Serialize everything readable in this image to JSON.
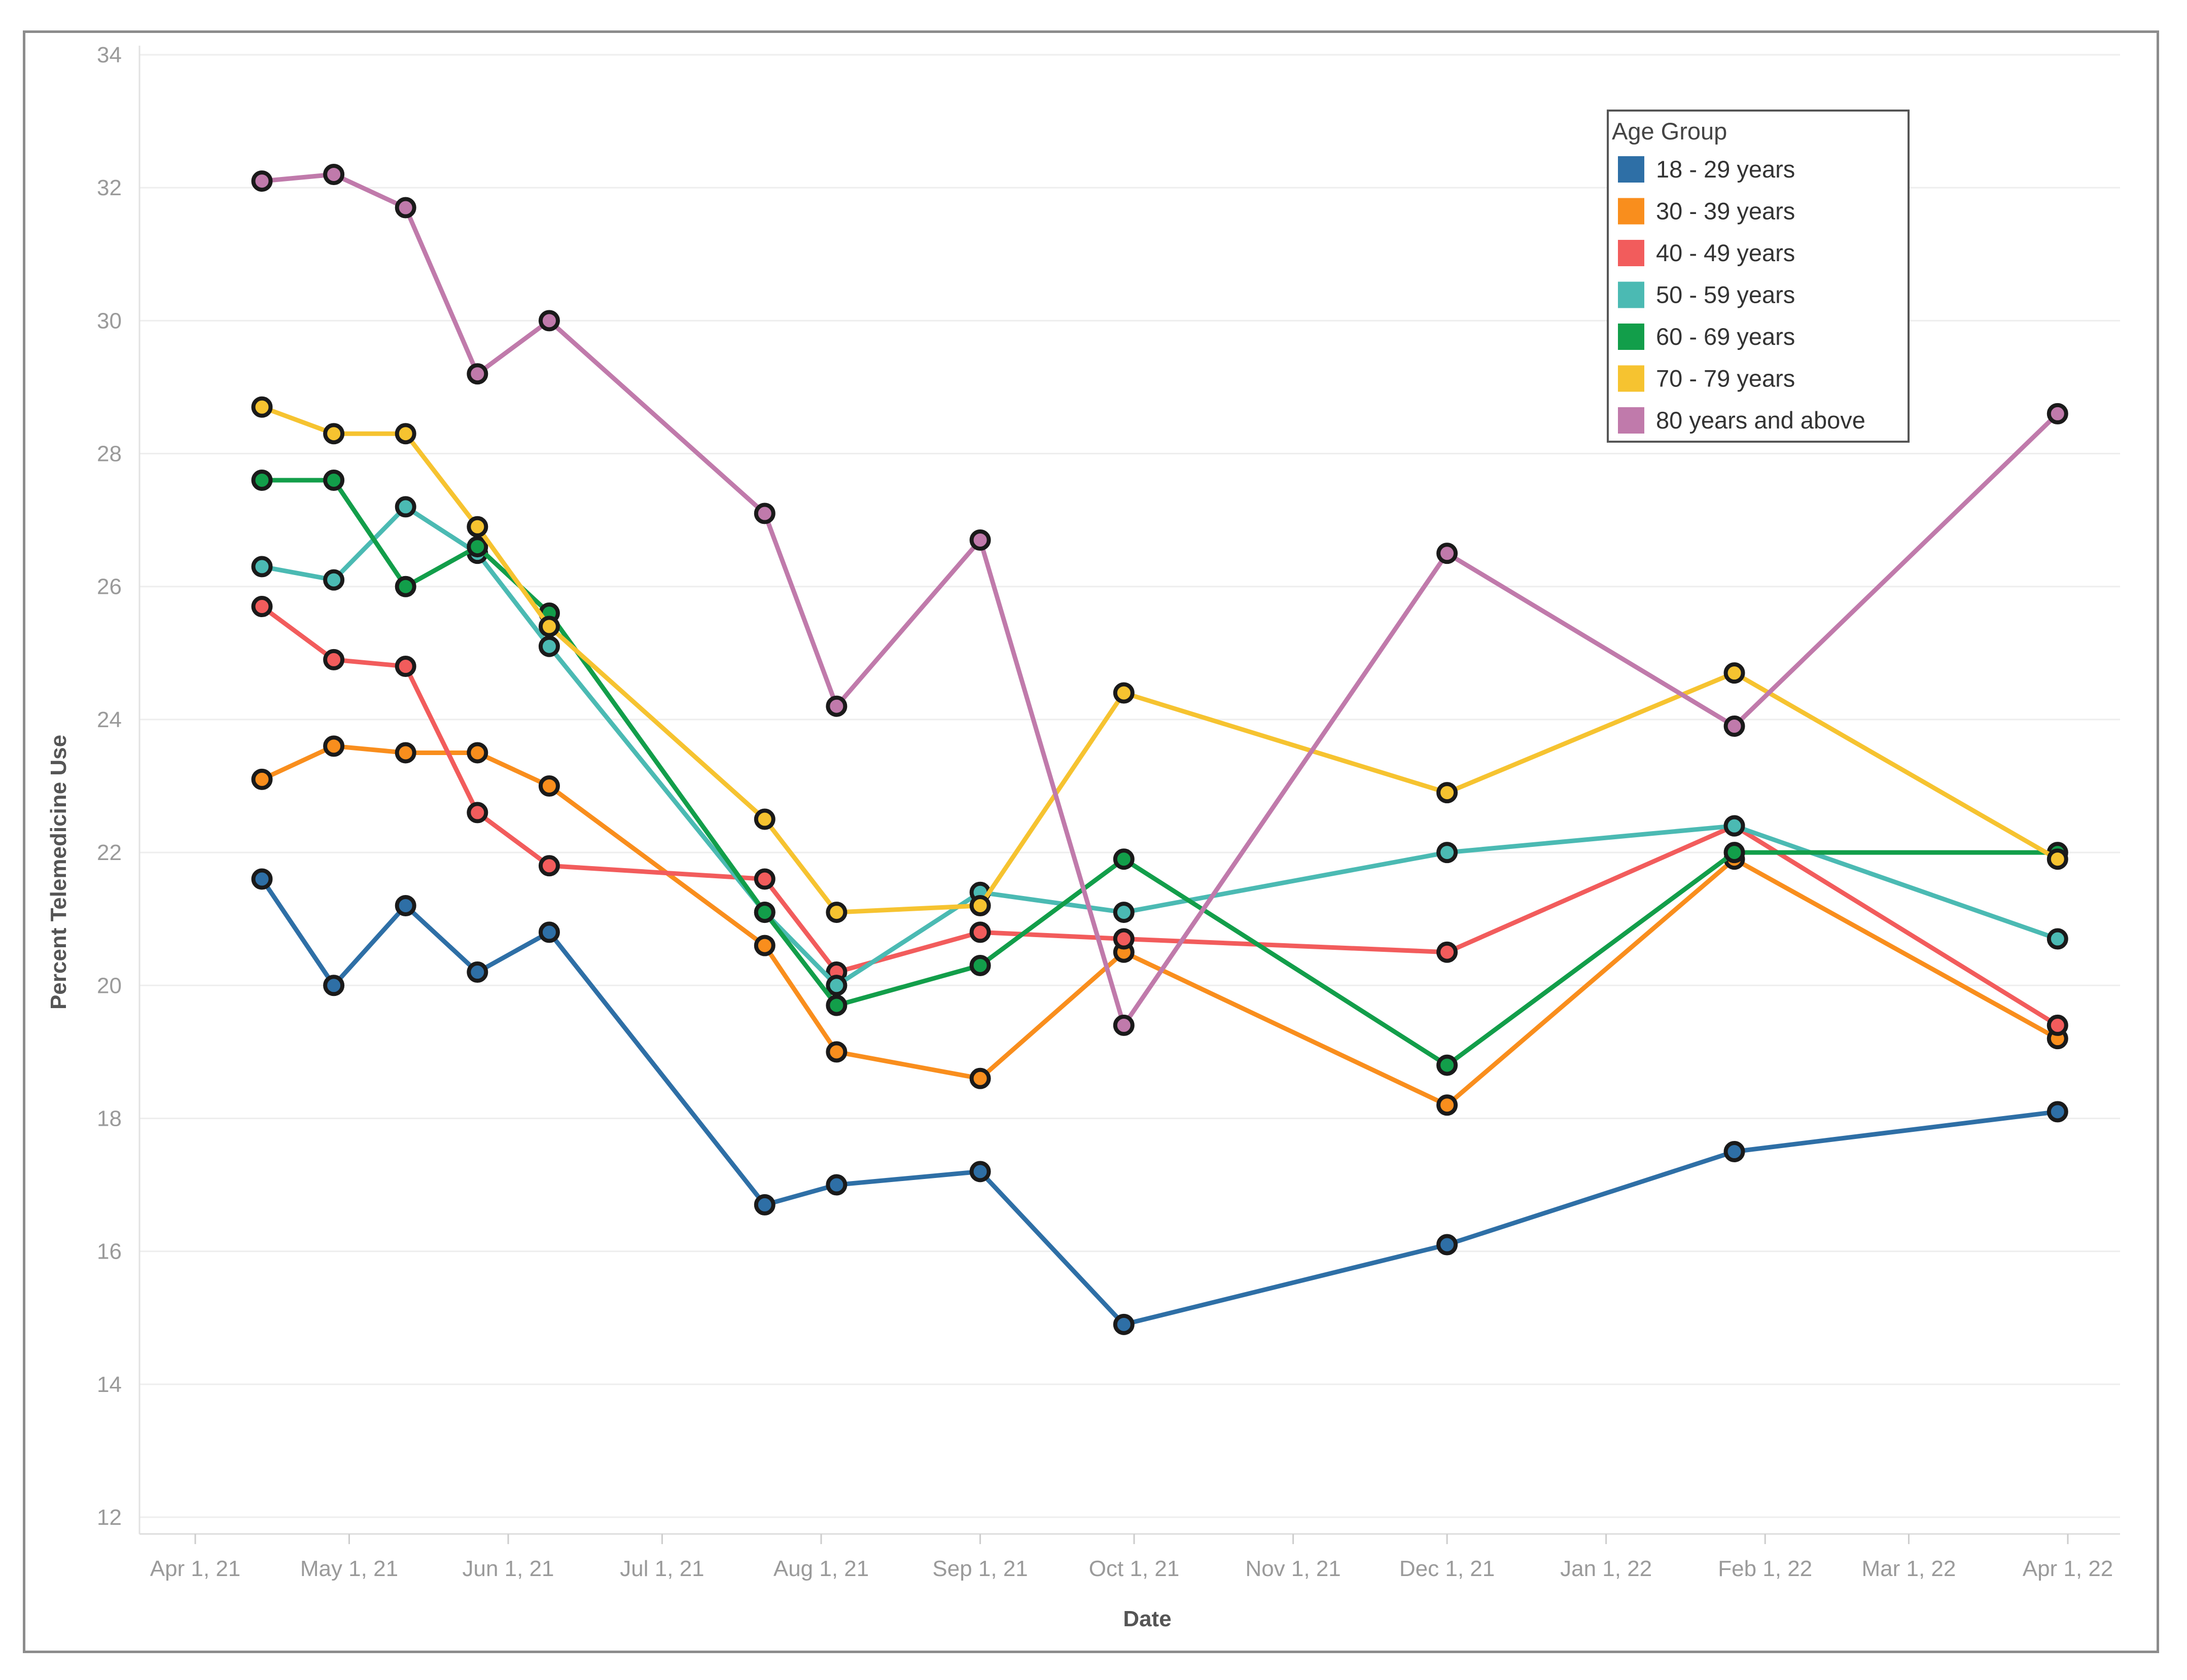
{
  "chart_data": {
    "type": "line",
    "title": "",
    "xlabel": "Date",
    "ylabel": "Percent Telemedicine Use",
    "ylim": [
      12,
      34
    ],
    "y_ticks": [
      12,
      14,
      16,
      18,
      20,
      22,
      24,
      26,
      28,
      30,
      32,
      34
    ],
    "x_range": [
      "2021-04-01",
      "2022-04-01"
    ],
    "x_ticks": [
      {
        "date": "2021-04-01",
        "label": "Apr 1, 21"
      },
      {
        "date": "2021-05-01",
        "label": "May 1, 21"
      },
      {
        "date": "2021-06-01",
        "label": "Jun 1, 21"
      },
      {
        "date": "2021-07-01",
        "label": "Jul 1, 21"
      },
      {
        "date": "2021-08-01",
        "label": "Aug 1, 21"
      },
      {
        "date": "2021-09-01",
        "label": "Sep 1, 21"
      },
      {
        "date": "2021-10-01",
        "label": "Oct 1, 21"
      },
      {
        "date": "2021-11-01",
        "label": "Nov 1, 21"
      },
      {
        "date": "2021-12-01",
        "label": "Dec 1, 21"
      },
      {
        "date": "2022-01-01",
        "label": "Jan 1, 22"
      },
      {
        "date": "2022-02-01",
        "label": "Feb 1, 22"
      },
      {
        "date": "2022-03-01",
        "label": "Mar 1, 22"
      },
      {
        "date": "2022-04-01",
        "label": "Apr 1, 22"
      }
    ],
    "grid": "horizontal",
    "legend": {
      "title": "Age Group",
      "position": "top-right"
    },
    "series": [
      {
        "name": "18 - 29 years",
        "color": "#2e6fa6",
        "points": [
          {
            "date": "2021-04-14",
            "value": 21.6
          },
          {
            "date": "2021-04-28",
            "value": 20.0
          },
          {
            "date": "2021-05-12",
            "value": 21.2
          },
          {
            "date": "2021-05-26",
            "value": 20.2
          },
          {
            "date": "2021-06-09",
            "value": 20.8
          },
          {
            "date": "2021-07-21",
            "value": 16.7
          },
          {
            "date": "2021-08-04",
            "value": 17.0
          },
          {
            "date": "2021-09-01",
            "value": 17.2
          },
          {
            "date": "2021-09-29",
            "value": 14.9
          },
          {
            "date": "2021-12-01",
            "value": 16.1
          },
          {
            "date": "2022-01-26",
            "value": 17.5
          },
          {
            "date": "2022-03-30",
            "value": 18.1
          }
        ]
      },
      {
        "name": "30 - 39 years",
        "color": "#f98e1d",
        "points": [
          {
            "date": "2021-04-14",
            "value": 23.1
          },
          {
            "date": "2021-04-28",
            "value": 23.6
          },
          {
            "date": "2021-05-12",
            "value": 23.5
          },
          {
            "date": "2021-05-26",
            "value": 23.5
          },
          {
            "date": "2021-06-09",
            "value": 23.0
          },
          {
            "date": "2021-07-21",
            "value": 20.6
          },
          {
            "date": "2021-08-04",
            "value": 19.0
          },
          {
            "date": "2021-09-01",
            "value": 18.6
          },
          {
            "date": "2021-09-29",
            "value": 20.5
          },
          {
            "date": "2021-12-01",
            "value": 18.2
          },
          {
            "date": "2022-01-26",
            "value": 21.9
          },
          {
            "date": "2022-03-30",
            "value": 19.2
          }
        ]
      },
      {
        "name": "40 - 49 years",
        "color": "#f25c5c",
        "points": [
          {
            "date": "2021-04-14",
            "value": 25.7
          },
          {
            "date": "2021-04-28",
            "value": 24.9
          },
          {
            "date": "2021-05-12",
            "value": 24.8
          },
          {
            "date": "2021-05-26",
            "value": 22.6
          },
          {
            "date": "2021-06-09",
            "value": 21.8
          },
          {
            "date": "2021-07-21",
            "value": 21.6
          },
          {
            "date": "2021-08-04",
            "value": 20.2
          },
          {
            "date": "2021-09-01",
            "value": 20.8
          },
          {
            "date": "2021-09-29",
            "value": 20.7
          },
          {
            "date": "2021-12-01",
            "value": 20.5
          },
          {
            "date": "2022-01-26",
            "value": 22.4
          },
          {
            "date": "2022-03-30",
            "value": 19.4
          }
        ]
      },
      {
        "name": "50 - 59 years",
        "color": "#4bbab3",
        "points": [
          {
            "date": "2021-04-14",
            "value": 26.3
          },
          {
            "date": "2021-04-28",
            "value": 26.1
          },
          {
            "date": "2021-05-12",
            "value": 27.2
          },
          {
            "date": "2021-05-26",
            "value": 26.5
          },
          {
            "date": "2021-06-09",
            "value": 25.1
          },
          {
            "date": "2021-07-21",
            "value": 21.1
          },
          {
            "date": "2021-08-04",
            "value": 20.0
          },
          {
            "date": "2021-09-01",
            "value": 21.4
          },
          {
            "date": "2021-09-29",
            "value": 21.1
          },
          {
            "date": "2021-12-01",
            "value": 22.0
          },
          {
            "date": "2022-01-26",
            "value": 22.4
          },
          {
            "date": "2022-03-30",
            "value": 20.7
          }
        ]
      },
      {
        "name": "60 - 69 years",
        "color": "#129e4a",
        "points": [
          {
            "date": "2021-04-14",
            "value": 27.6
          },
          {
            "date": "2021-04-28",
            "value": 27.6
          },
          {
            "date": "2021-05-12",
            "value": 26.0
          },
          {
            "date": "2021-05-26",
            "value": 26.6
          },
          {
            "date": "2021-06-09",
            "value": 25.6
          },
          {
            "date": "2021-07-21",
            "value": 21.1
          },
          {
            "date": "2021-08-04",
            "value": 19.7
          },
          {
            "date": "2021-09-01",
            "value": 20.3
          },
          {
            "date": "2021-09-29",
            "value": 21.9
          },
          {
            "date": "2021-12-01",
            "value": 18.8
          },
          {
            "date": "2022-01-26",
            "value": 22.0
          },
          {
            "date": "2022-03-30",
            "value": 22.0
          }
        ]
      },
      {
        "name": "70 - 79 years",
        "color": "#f6c330",
        "points": [
          {
            "date": "2021-04-14",
            "value": 28.7
          },
          {
            "date": "2021-04-28",
            "value": 28.3
          },
          {
            "date": "2021-05-12",
            "value": 28.3
          },
          {
            "date": "2021-05-26",
            "value": 26.9
          },
          {
            "date": "2021-06-09",
            "value": 25.4
          },
          {
            "date": "2021-07-21",
            "value": 22.5
          },
          {
            "date": "2021-08-04",
            "value": 21.1
          },
          {
            "date": "2021-09-01",
            "value": 21.2
          },
          {
            "date": "2021-09-29",
            "value": 24.4
          },
          {
            "date": "2021-12-01",
            "value": 22.9
          },
          {
            "date": "2022-01-26",
            "value": 24.7
          },
          {
            "date": "2022-03-30",
            "value": 21.9
          }
        ]
      },
      {
        "name": "80 years and above",
        "color": "#c07aab",
        "points": [
          {
            "date": "2021-04-14",
            "value": 32.1
          },
          {
            "date": "2021-04-28",
            "value": 32.2
          },
          {
            "date": "2021-05-12",
            "value": 31.7
          },
          {
            "date": "2021-05-26",
            "value": 29.2
          },
          {
            "date": "2021-06-09",
            "value": 30.0
          },
          {
            "date": "2021-07-21",
            "value": 27.1
          },
          {
            "date": "2021-08-04",
            "value": 24.2
          },
          {
            "date": "2021-09-01",
            "value": 26.7
          },
          {
            "date": "2021-09-29",
            "value": 19.4
          },
          {
            "date": "2021-12-01",
            "value": 26.5
          },
          {
            "date": "2022-01-26",
            "value": 23.9
          },
          {
            "date": "2022-03-30",
            "value": 28.6
          }
        ]
      }
    ]
  }
}
